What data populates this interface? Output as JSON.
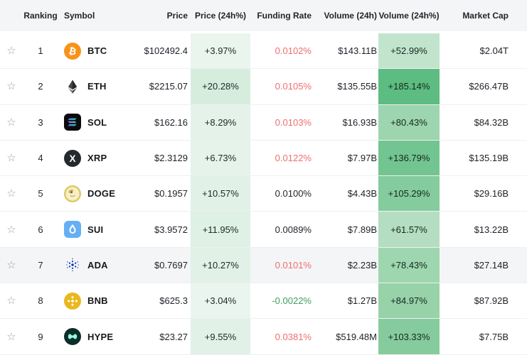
{
  "table": {
    "columns": [
      {
        "key": "favorite",
        "label": ""
      },
      {
        "key": "ranking",
        "label": "Ranking"
      },
      {
        "key": "symbol",
        "label": "Symbol"
      },
      {
        "key": "price",
        "label": "Price"
      },
      {
        "key": "price_change",
        "label": "Price (24h%)"
      },
      {
        "key": "funding_rate",
        "label": "Funding Rate"
      },
      {
        "key": "volume",
        "label": "Volume (24h)"
      },
      {
        "key": "volume_change",
        "label": "Volume (24h%)"
      },
      {
        "key": "market_cap",
        "label": "Market Cap"
      }
    ],
    "rows": [
      {
        "rank": "1",
        "symbol": "BTC",
        "icon": "btc-icon",
        "price": "$102492.4",
        "price_change": "+3.97%",
        "price_change_bg": "#eaf5ee",
        "funding": "0.0102%",
        "funding_color": "#ee6f6f",
        "volume": "$143.11B",
        "volume_change": "+52.99%",
        "volume_change_bg": "#c2e4cd",
        "market_cap": "$2.04T",
        "highlighted": false
      },
      {
        "rank": "2",
        "symbol": "ETH",
        "icon": "eth-icon",
        "price": "$2215.07",
        "price_change": "+20.28%",
        "price_change_bg": "#d6edde",
        "funding": "0.0105%",
        "funding_color": "#ee6f6f",
        "volume": "$135.55B",
        "volume_change": "+185.14%",
        "volume_change_bg": "#5cbc81",
        "market_cap": "$266.47B",
        "highlighted": false
      },
      {
        "rank": "3",
        "symbol": "SOL",
        "icon": "sol-icon",
        "price": "$162.16",
        "price_change": "+8.29%",
        "price_change_bg": "#e4f2e9",
        "funding": "0.0103%",
        "funding_color": "#ee6f6f",
        "volume": "$16.93B",
        "volume_change": "+80.43%",
        "volume_change_bg": "#9cd5af",
        "market_cap": "$84.32B",
        "highlighted": false
      },
      {
        "rank": "4",
        "symbol": "XRP",
        "icon": "xrp-icon",
        "price": "$2.3129",
        "price_change": "+6.73%",
        "price_change_bg": "#e6f3ea",
        "funding": "0.0122%",
        "funding_color": "#ee6f6f",
        "volume": "$7.97B",
        "volume_change": "+136.79%",
        "volume_change_bg": "#72c590",
        "market_cap": "$135.19B",
        "highlighted": false
      },
      {
        "rank": "5",
        "symbol": "DOGE",
        "icon": "doge-icon",
        "price": "$0.1957",
        "price_change": "+10.57%",
        "price_change_bg": "#e1f1e7",
        "funding": "0.0100%",
        "funding_color": "#23262b",
        "volume": "$4.43B",
        "volume_change": "+105.29%",
        "volume_change_bg": "#84cb9d",
        "market_cap": "$29.16B",
        "highlighted": false
      },
      {
        "rank": "6",
        "symbol": "SUI",
        "icon": "sui-icon",
        "price": "$3.9572",
        "price_change": "+11.95%",
        "price_change_bg": "#dff0e5",
        "funding": "0.0089%",
        "funding_color": "#23262b",
        "volume": "$7.89B",
        "volume_change": "+61.57%",
        "volume_change_bg": "#b4ddc1",
        "market_cap": "$13.22B",
        "highlighted": false
      },
      {
        "rank": "7",
        "symbol": "ADA",
        "icon": "ada-icon",
        "price": "$0.7697",
        "price_change": "+10.27%",
        "price_change_bg": "#e1f1e7",
        "funding": "0.0101%",
        "funding_color": "#ee6f6f",
        "volume": "$2.23B",
        "volume_change": "+78.43%",
        "volume_change_bg": "#9ed6b0",
        "market_cap": "$27.14B",
        "highlighted": true
      },
      {
        "rank": "8",
        "symbol": "BNB",
        "icon": "bnb-icon",
        "price": "$625.3",
        "price_change": "+3.04%",
        "price_change_bg": "#ebf5ef",
        "funding": "-0.0022%",
        "funding_color": "#3f9e5f",
        "volume": "$1.27B",
        "volume_change": "+84.97%",
        "volume_change_bg": "#97d2a9",
        "market_cap": "$87.92B",
        "highlighted": false
      },
      {
        "rank": "9",
        "symbol": "HYPE",
        "icon": "hype-icon",
        "price": "$23.27",
        "price_change": "+9.55%",
        "price_change_bg": "#e2f1e8",
        "funding": "0.0381%",
        "funding_color": "#ee6f6f",
        "volume": "$519.48M",
        "volume_change": "+103.33%",
        "volume_change_bg": "#86cb9e",
        "market_cap": "$7.75B",
        "highlighted": false
      }
    ]
  },
  "icons": {
    "star_glyph": "☆"
  },
  "colors": {
    "header_bg": "#f4f5f6",
    "row_divider": "#eef0f1",
    "funding_negative_red": "#ee6f6f",
    "funding_positive_green": "#3f9e5f",
    "heat_green_max": "#5cbc81",
    "heat_green_min": "#eaf5ee",
    "brand_btc_orange": "#f7931a",
    "brand_bnb_gold": "#eab81d",
    "brand_sui_blue": "#66aff5",
    "brand_ada_blue": "#0033ad"
  }
}
